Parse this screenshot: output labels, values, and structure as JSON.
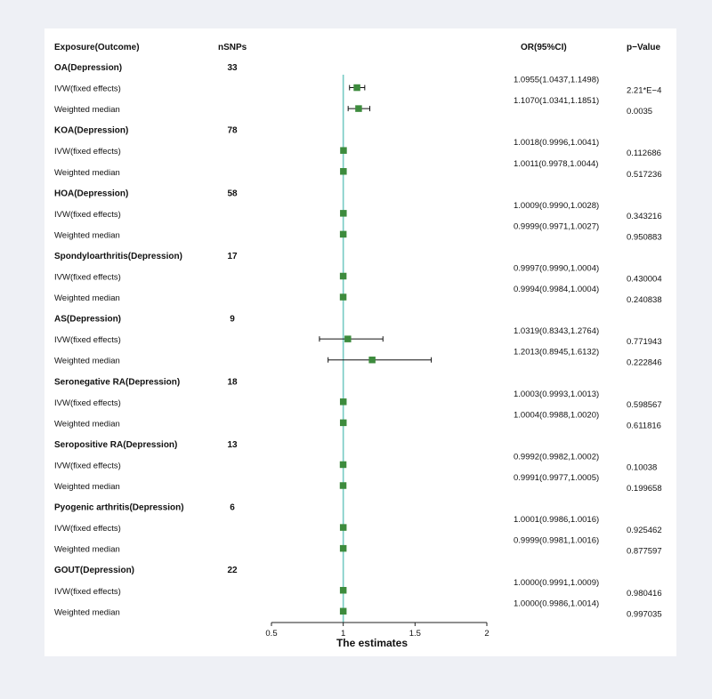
{
  "colors": {
    "marker": "#3d8b3d",
    "ref_line": "#77cbc4",
    "axis": "#222222",
    "ci_line": "#111111",
    "background": "#eef0f5",
    "panel": "#ffffff"
  },
  "headers": {
    "exposure": "Exposure(Outcome)",
    "nsnps": "nSNPs",
    "or": "OR(95%CI)",
    "pvalue": "p−Value"
  },
  "chart_data": {
    "type": "forest",
    "xlabel": "The estimates",
    "xlim": [
      0.5,
      2
    ],
    "xticks": [
      "0.5",
      "1",
      "1.5",
      "2"
    ],
    "ref_value": 1,
    "groups": [
      {
        "name": "OA(Depression)",
        "nsnps": "33",
        "rows": [
          {
            "method": "IVW(fixed effects)",
            "or": 1.0955,
            "lo": 1.0437,
            "hi": 1.1498,
            "ci_text": "1.0955(1.0437,1.1498)",
            "p": "2.21*E−4"
          },
          {
            "method": "Weighted median",
            "or": 1.107,
            "lo": 1.0341,
            "hi": 1.1851,
            "ci_text": "1.1070(1.0341,1.1851)",
            "p": "0.0035"
          }
        ]
      },
      {
        "name": "KOA(Depression)",
        "nsnps": "78",
        "rows": [
          {
            "method": "IVW(fixed effects)",
            "or": 1.0018,
            "lo": 0.9996,
            "hi": 1.0041,
            "ci_text": "1.0018(0.9996,1.0041)",
            "p": "0.112686"
          },
          {
            "method": "Weighted median",
            "or": 1.0011,
            "lo": 0.9978,
            "hi": 1.0044,
            "ci_text": "1.0011(0.9978,1.0044)",
            "p": "0.517236"
          }
        ]
      },
      {
        "name": "HOA(Depression)",
        "nsnps": "58",
        "rows": [
          {
            "method": "IVW(fixed effects)",
            "or": 1.0009,
            "lo": 0.999,
            "hi": 1.0028,
            "ci_text": "1.0009(0.9990,1.0028)",
            "p": "0.343216"
          },
          {
            "method": "Weighted median",
            "or": 0.9999,
            "lo": 0.9971,
            "hi": 1.0027,
            "ci_text": "0.9999(0.9971,1.0027)",
            "p": "0.950883"
          }
        ]
      },
      {
        "name": "Spondyloarthritis(Depression)",
        "nsnps": "17",
        "rows": [
          {
            "method": "IVW(fixed effects)",
            "or": 0.9997,
            "lo": 0.999,
            "hi": 1.0004,
            "ci_text": "0.9997(0.9990,1.0004)",
            "p": "0.430004"
          },
          {
            "method": "Weighted median",
            "or": 0.9994,
            "lo": 0.9984,
            "hi": 1.0004,
            "ci_text": "0.9994(0.9984,1.0004)",
            "p": "0.240838"
          }
        ]
      },
      {
        "name": "AS(Depression)",
        "nsnps": "9",
        "rows": [
          {
            "method": "IVW(fixed effects)",
            "or": 1.0319,
            "lo": 0.8343,
            "hi": 1.2764,
            "ci_text": "1.0319(0.8343,1.2764)",
            "p": "0.771943"
          },
          {
            "method": "Weighted median",
            "or": 1.2013,
            "lo": 0.8945,
            "hi": 1.6132,
            "ci_text": "1.2013(0.8945,1.6132)",
            "p": "0.222846"
          }
        ]
      },
      {
        "name": "Seronegative RA(Depression)",
        "nsnps": "18",
        "rows": [
          {
            "method": "IVW(fixed effects)",
            "or": 1.0003,
            "lo": 0.9993,
            "hi": 1.0013,
            "ci_text": "1.0003(0.9993,1.0013)",
            "p": "0.598567"
          },
          {
            "method": "Weighted median",
            "or": 1.0004,
            "lo": 0.9988,
            "hi": 1.002,
            "ci_text": "1.0004(0.9988,1.0020)",
            "p": "0.611816"
          }
        ]
      },
      {
        "name": "Seropositive RA(Depression)",
        "nsnps": "13",
        "rows": [
          {
            "method": "IVW(fixed effects)",
            "or": 0.9992,
            "lo": 0.9982,
            "hi": 1.0002,
            "ci_text": "0.9992(0.9982,1.0002)",
            "p": "0.10038"
          },
          {
            "method": "Weighted median",
            "or": 0.9991,
            "lo": 0.9977,
            "hi": 1.0005,
            "ci_text": "0.9991(0.9977,1.0005)",
            "p": "0.199658"
          }
        ]
      },
      {
        "name": "Pyogenic arthritis(Depression)",
        "nsnps": "6",
        "rows": [
          {
            "method": "IVW(fixed effects)",
            "or": 1.0001,
            "lo": 0.9986,
            "hi": 1.0016,
            "ci_text": "1.0001(0.9986,1.0016)",
            "p": "0.925462"
          },
          {
            "method": "Weighted median",
            "or": 0.9999,
            "lo": 0.9981,
            "hi": 1.0016,
            "ci_text": "0.9999(0.9981,1.0016)",
            "p": "0.877597"
          }
        ]
      },
      {
        "name": "GOUT(Depression)",
        "nsnps": "22",
        "rows": [
          {
            "method": "IVW(fixed effects)",
            "or": 1.0,
            "lo": 0.9991,
            "hi": 1.0009,
            "ci_text": "1.0000(0.9991,1.0009)",
            "p": "0.980416"
          },
          {
            "method": "Weighted median",
            "or": 1.0,
            "lo": 0.9986,
            "hi": 1.0014,
            "ci_text": "1.0000(0.9986,1.0014)",
            "p": "0.997035"
          }
        ]
      }
    ]
  }
}
